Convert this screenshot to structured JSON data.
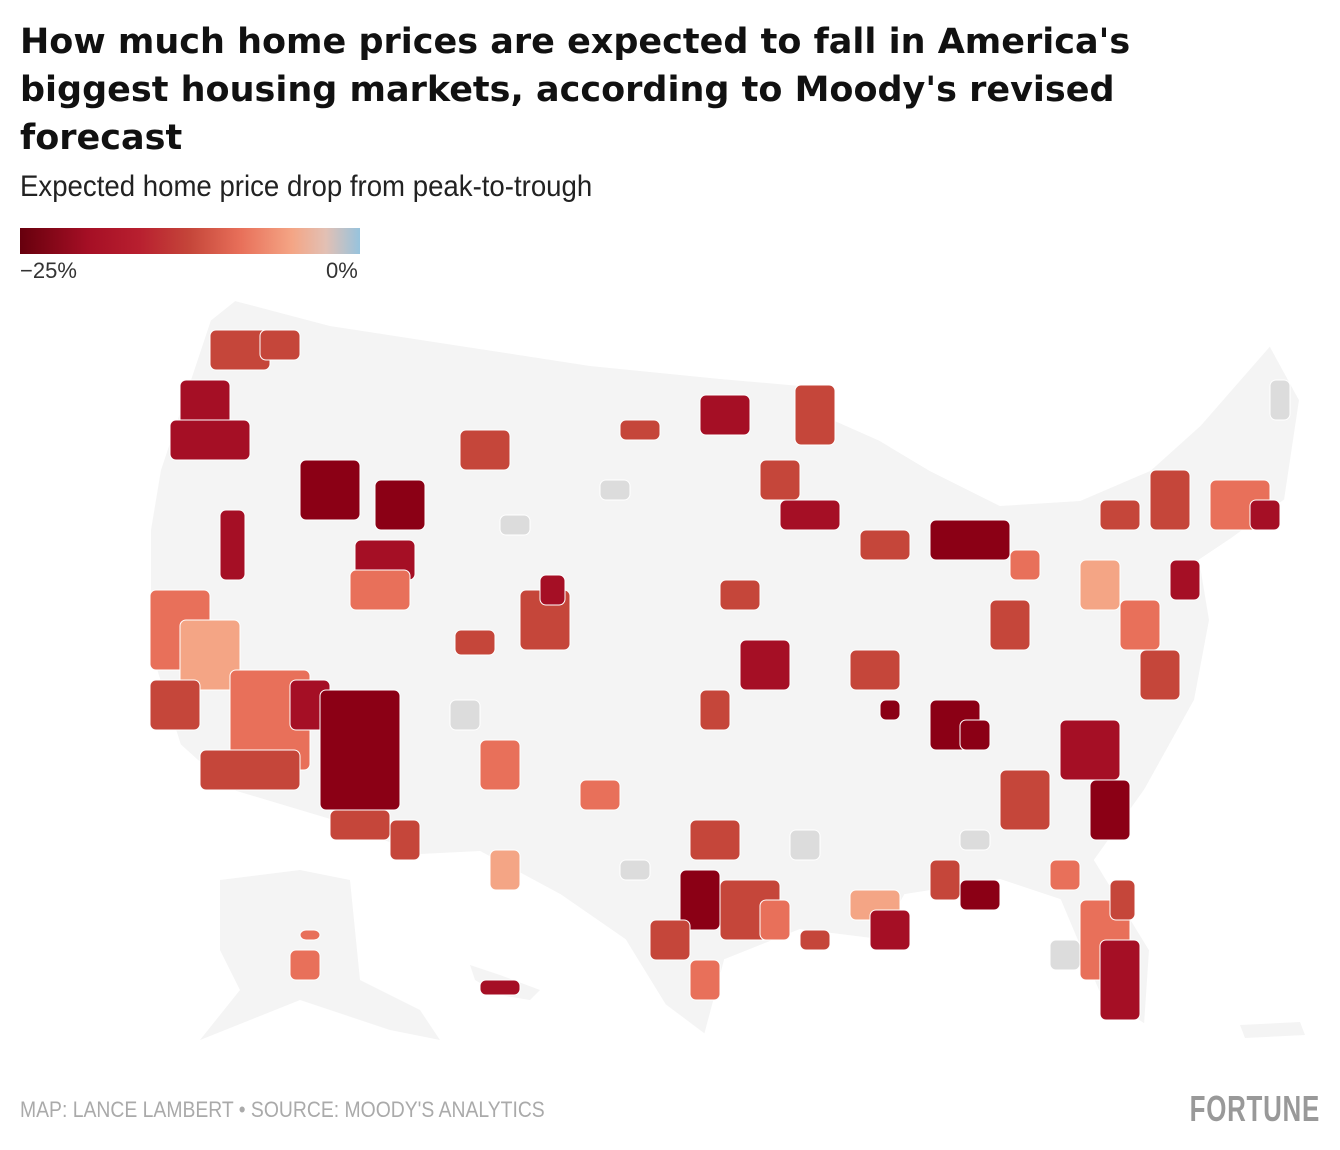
{
  "title": "How much home prices are expected to fall in America's biggest housing markets, according to Moody's revised forecast",
  "subtitle": "Expected home price drop from peak-to-trough",
  "legend": {
    "min_label": "−25%",
    "max_label": "0%",
    "min_value": -25,
    "max_value": 0,
    "colors": [
      "#67000d",
      "#a50f25",
      "#c5463a",
      "#e8705a",
      "#f4a585",
      "#97c3dd"
    ]
  },
  "map": {
    "land_color": "#f4f4f4",
    "border_color": "#ffffff",
    "no_data_color": "#dcdcdc"
  },
  "footer": {
    "credit": "MAP: LANCE LAMBERT • SOURCE: MOODY'S ANALYTICS",
    "logo": "FORTUNE"
  }
}
